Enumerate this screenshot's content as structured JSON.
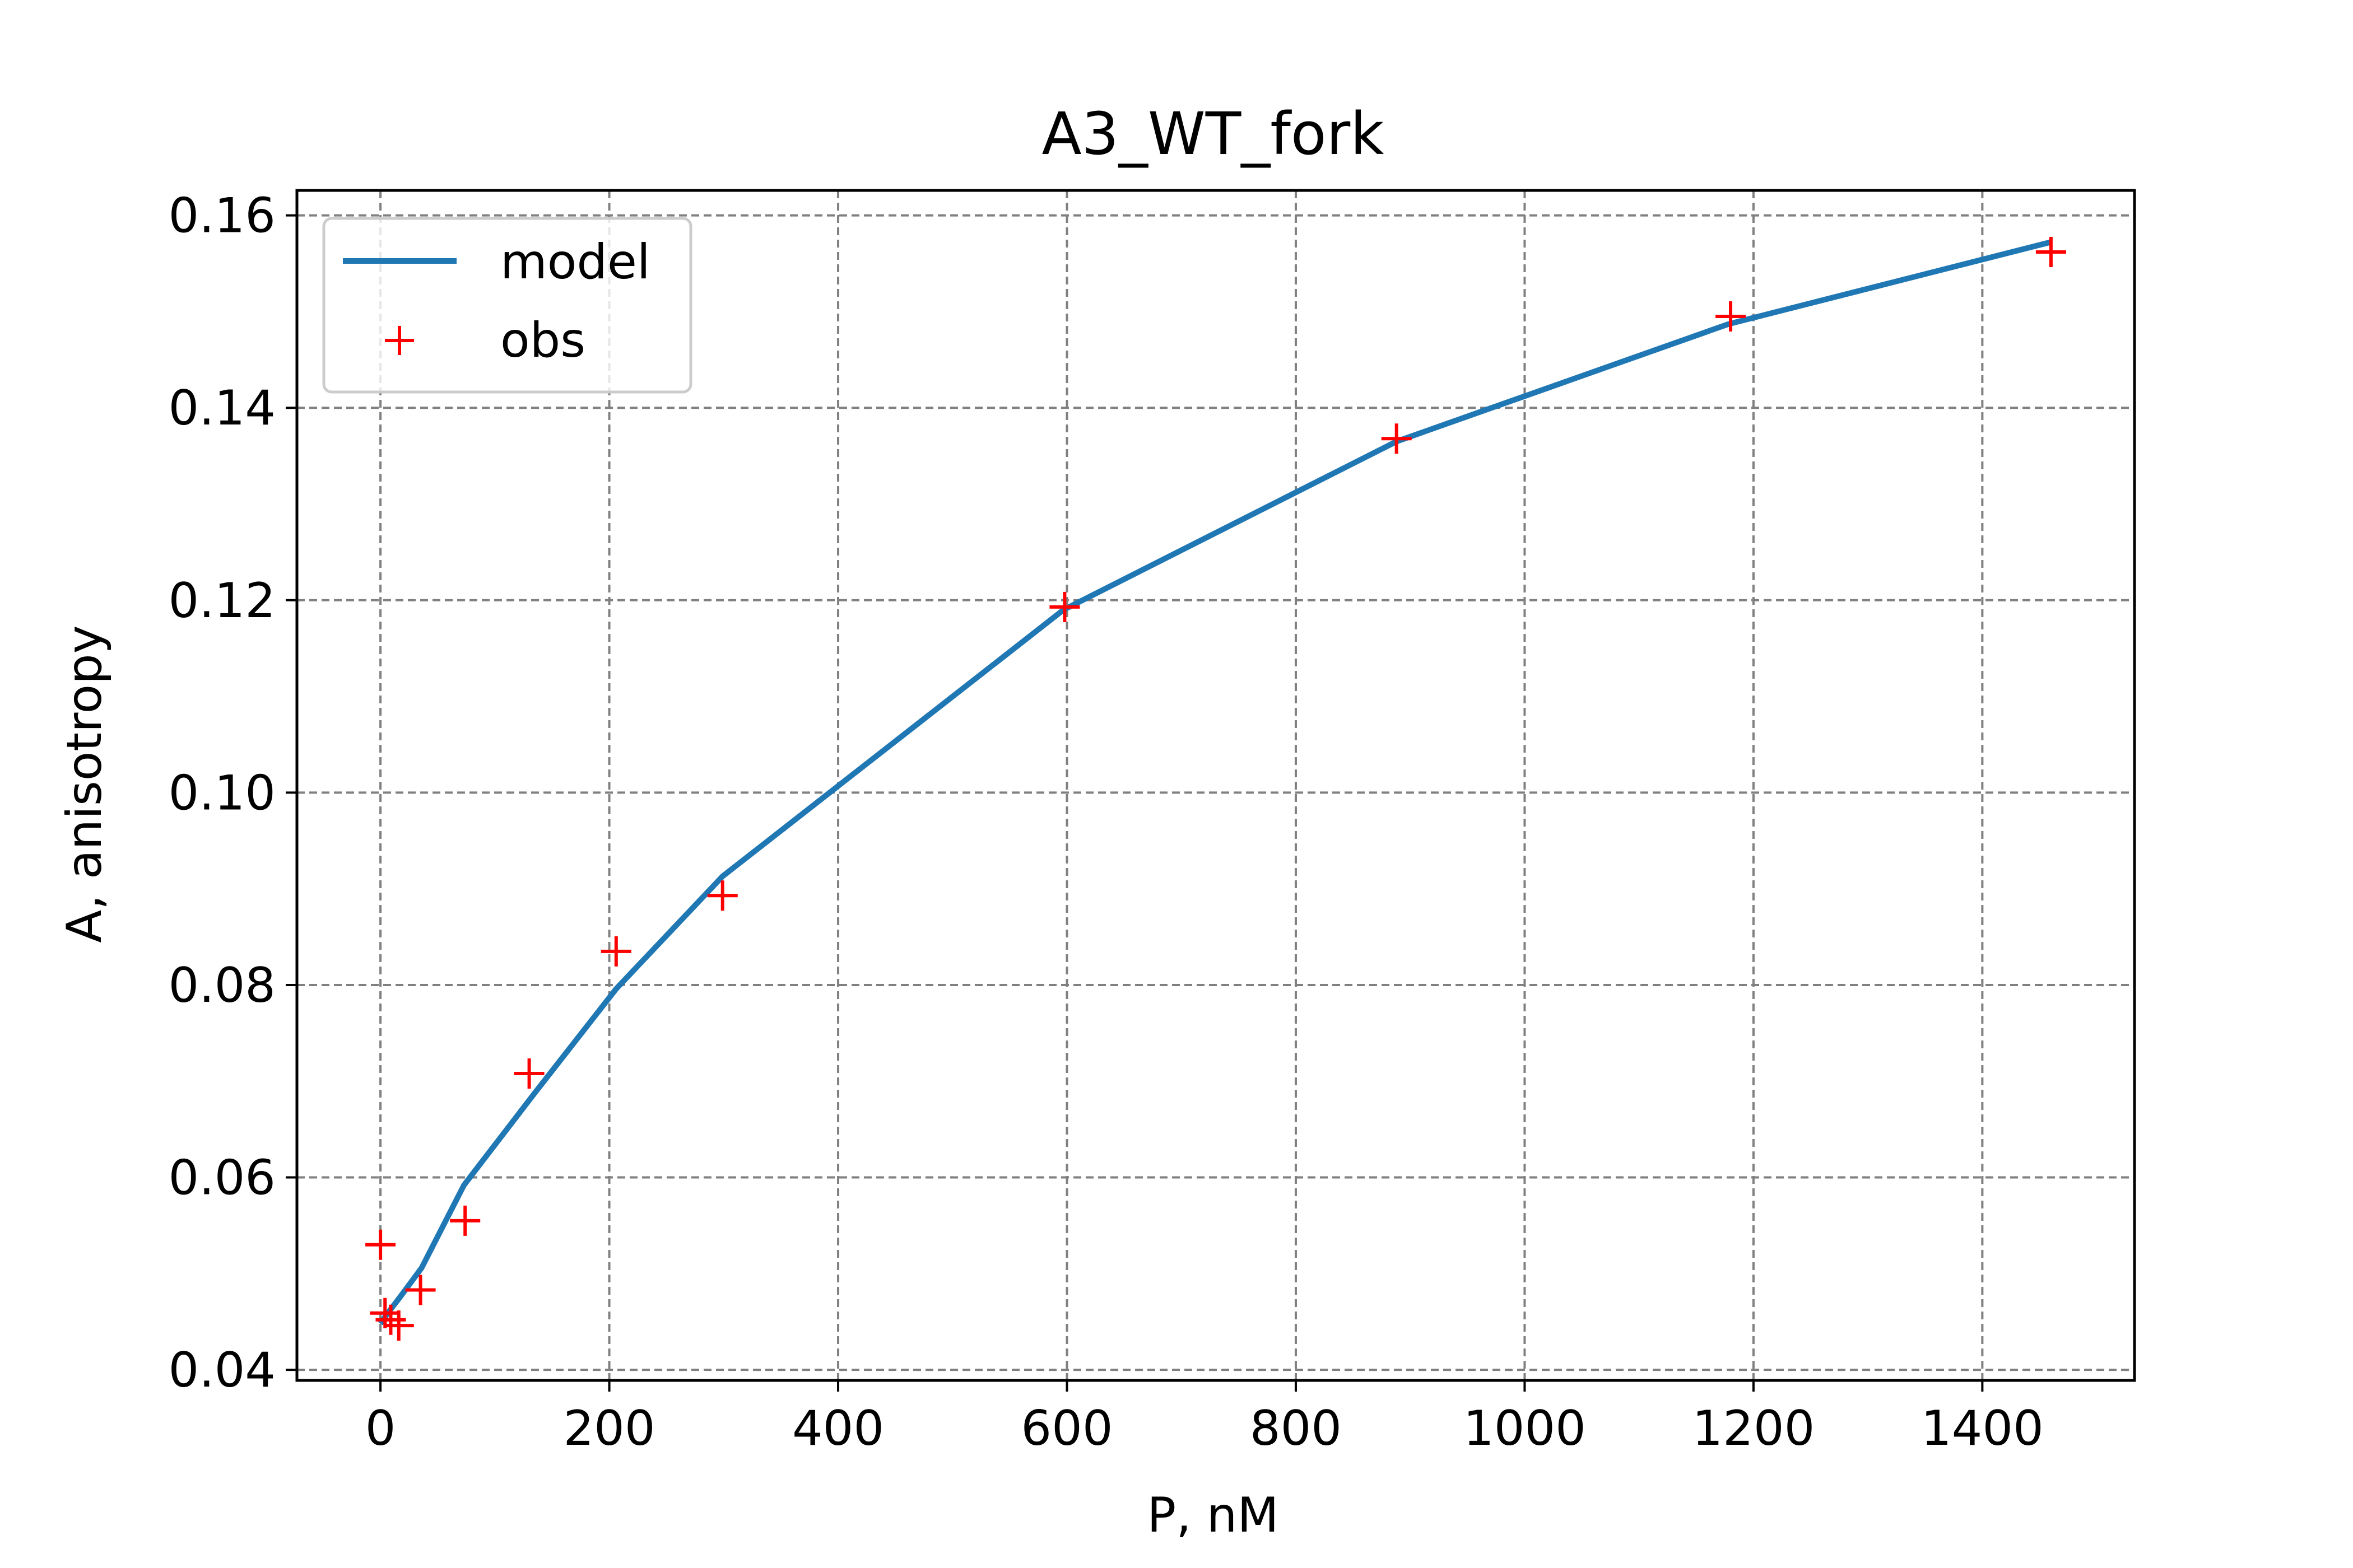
{
  "chart_data": {
    "type": "line",
    "title": "A3_WT_fork",
    "xlabel": "P, nM",
    "ylabel": "A, anisotropy",
    "xlim": [
      -73,
      1533
    ],
    "ylim": [
      0.0389,
      0.1626
    ],
    "xticks": [
      0,
      200,
      400,
      600,
      800,
      1000,
      1200,
      1400
    ],
    "yticks": [
      0.04,
      0.06,
      0.08,
      0.1,
      0.12,
      0.14,
      0.16
    ],
    "xtick_labels": [
      "0",
      "200",
      "400",
      "600",
      "800",
      "1000",
      "1200",
      "1400"
    ],
    "ytick_labels": [
      "0.04",
      "0.06",
      "0.08",
      "0.10",
      "0.12",
      "0.14",
      "0.16"
    ],
    "grid": true,
    "legend_position": "upper-left",
    "series": [
      {
        "name": "model",
        "kind": "line",
        "color": "#1f77b4",
        "x": [
          0,
          4,
          9,
          18,
          36,
          73,
          135,
          206,
          299,
          597,
          888,
          1178,
          1459
        ],
        "y": [
          0.0448,
          0.0455,
          0.0463,
          0.0477,
          0.0506,
          0.0592,
          0.0688,
          0.0796,
          0.0913,
          0.119,
          0.1365,
          0.1487,
          0.1572
        ]
      },
      {
        "name": "obs",
        "kind": "scatter",
        "marker": "plus",
        "color": "#ff0000",
        "x": [
          0,
          4,
          9,
          16,
          35,
          74,
          130,
          206,
          299,
          598,
          888,
          1180,
          1460
        ],
        "y": [
          0.053,
          0.0459,
          0.0452,
          0.0446,
          0.0483,
          0.0555,
          0.0708,
          0.0835,
          0.0893,
          0.1193,
          0.1368,
          0.1495,
          0.1562
        ]
      }
    ]
  }
}
